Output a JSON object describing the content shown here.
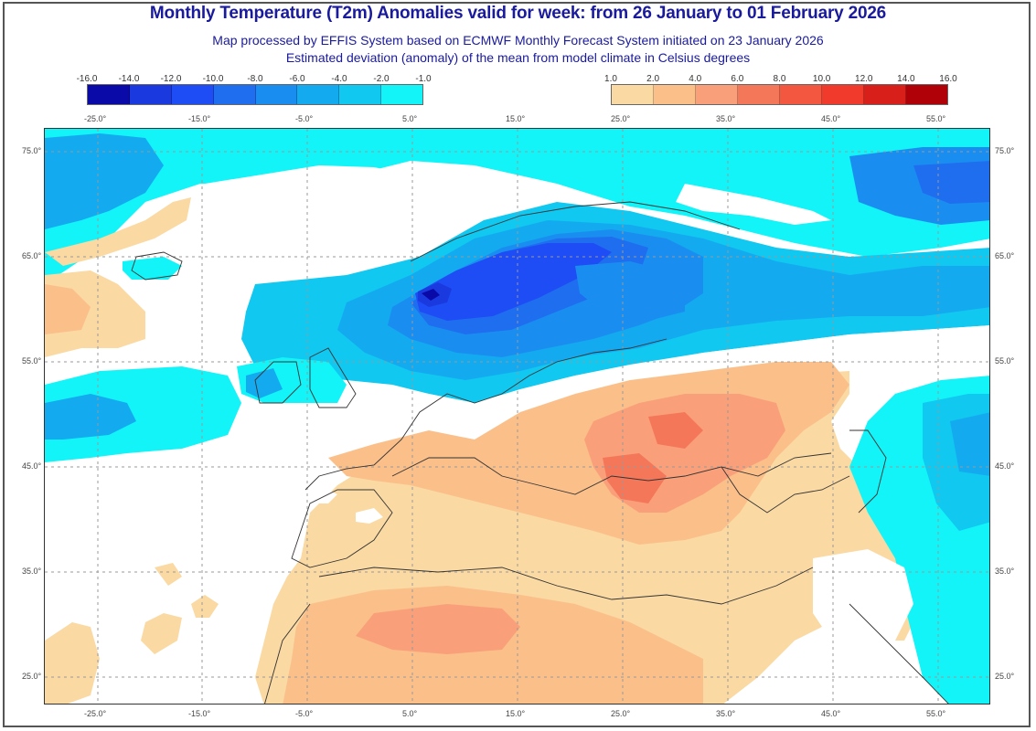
{
  "header": {
    "title": "Monthly Temperature (T2m) Anomalies valid for week: from 26 January to 01 February 2026",
    "subtitle_1": "Map processed by EFFIS System based on ECMWF Monthly Forecast System initiated on 23 January 2026",
    "subtitle_2": "Estimated deviation (anomaly) of the mean from model climate in Celsius degrees"
  },
  "legend": {
    "negative": {
      "ticks": [
        "-16.0",
        "-14.0",
        "-12.0",
        "-10.0",
        "-8.0",
        "-6.0",
        "-4.0",
        "-2.0",
        "-1.0"
      ],
      "colors": [
        "#0a0aa8",
        "#1a3ae0",
        "#1e4cf5",
        "#1f6ef0",
        "#1a8ef0",
        "#14aaf0",
        "#10c8f0",
        "#12f4f8"
      ]
    },
    "positive": {
      "ticks": [
        "1.0",
        "2.0",
        "4.0",
        "6.0",
        "8.0",
        "10.0",
        "12.0",
        "14.0",
        "16.0"
      ],
      "colors": [
        "#fad9a3",
        "#fbbf8a",
        "#f9a07a",
        "#f5775a",
        "#f4573f",
        "#f23a2c",
        "#d91f1a",
        "#b00008"
      ]
    }
  },
  "axes": {
    "top_lon_labels": [
      "-25.0°",
      "-15.0°",
      "-5.0°",
      "5.0°",
      "15.0°",
      "25.0°",
      "35.0°",
      "45.0°",
      "55.0°"
    ],
    "bottom_lon_labels": [
      "-25.0°",
      "-15.0°",
      "-5.0°",
      "5.0°",
      "15.0°",
      "25.0°",
      "35.0°",
      "45.0°",
      "55.0°"
    ],
    "lat_labels": [
      "75.0°",
      "65.0°",
      "55.0°",
      "45.0°",
      "35.0°",
      "25.0°"
    ]
  },
  "colors": {
    "title": "#1a1a9c",
    "frame": "#333333"
  }
}
